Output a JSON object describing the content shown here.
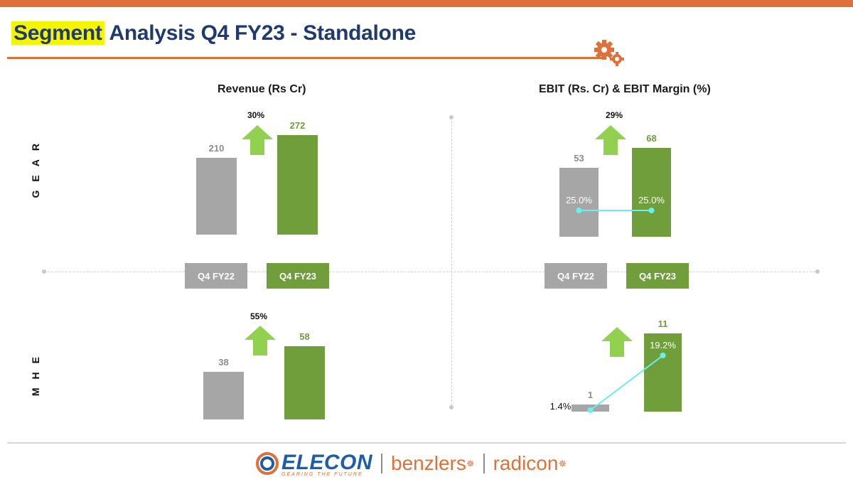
{
  "header": {
    "title_highlight": "Segment",
    "title_rest": " Analysis Q4 FY23 - Standalone"
  },
  "sections": {
    "revenue_title": "Revenue (Rs Cr)",
    "ebit_title": "EBIT (Rs. Cr) & EBIT Margin (%)"
  },
  "rows": {
    "gear_label": "GEAR",
    "mhe_label": "MHE"
  },
  "colors": {
    "prior": "#a6a6a6",
    "current": "#6f9e3b",
    "arrow": "#92d050",
    "margin_line": "#66f0f5",
    "accent": "#e0703a",
    "title": "#1f3a6e"
  },
  "chart_data": [
    {
      "type": "bar",
      "segment": "GEAR",
      "title": "Revenue (Rs Cr)",
      "categories": [
        "Q4 FY22",
        "Q4 FY23"
      ],
      "values": [
        210,
        272
      ],
      "labels": [
        "210",
        "272"
      ],
      "growth": "30%"
    },
    {
      "type": "bar",
      "segment": "GEAR",
      "title": "EBIT (Rs. Cr) & EBIT Margin (%)",
      "categories": [
        "Q4 FY22",
        "Q4 FY23"
      ],
      "values": [
        53,
        68
      ],
      "labels": [
        "53",
        "68"
      ],
      "growth": "29%",
      "margin_series": {
        "name": "EBIT Margin (%)",
        "values": [
          25.0,
          25.0
        ],
        "labels": [
          "25.0%",
          "25.0%"
        ]
      }
    },
    {
      "type": "bar",
      "segment": "MHE",
      "title": "Revenue (Rs Cr)",
      "categories": [
        "Q4 FY22",
        "Q4 FY23"
      ],
      "values": [
        38,
        58
      ],
      "labels": [
        "38",
        "58"
      ],
      "growth": "55%"
    },
    {
      "type": "bar",
      "segment": "MHE",
      "title": "EBIT (Rs. Cr) & EBIT Margin (%)",
      "categories": [
        "Q4 FY22",
        "Q4 FY23"
      ],
      "values": [
        1,
        11
      ],
      "labels": [
        "1",
        "11"
      ],
      "margin_series": {
        "name": "EBIT Margin (%)",
        "values": [
          1.4,
          19.2
        ],
        "labels": [
          "1.4%",
          "19.2%"
        ]
      }
    }
  ],
  "footer": {
    "brand1": "ELECON",
    "brand1_tagline": "GEARING THE FUTURE",
    "brand2": "benzlers",
    "brand3": "radicon"
  }
}
